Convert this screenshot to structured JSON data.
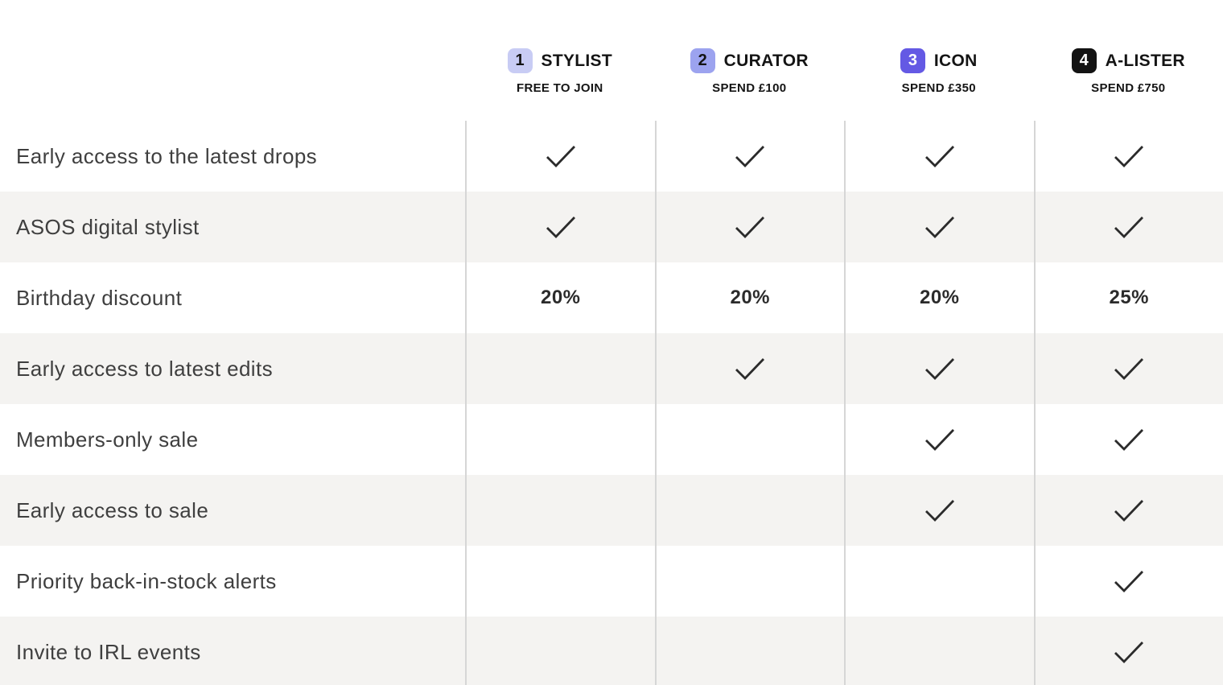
{
  "colors": {
    "stripe": "#f4f3f1",
    "separator": "#d6d6d6",
    "check": "#2b2b2b",
    "header_text": "#141414",
    "label_text": "#3f3f3f"
  },
  "tiers": [
    {
      "number": "1",
      "name": "STYLIST",
      "subtitle": "FREE TO JOIN",
      "badge_bg": "#c8ccf4",
      "badge_fg": "#141414"
    },
    {
      "number": "2",
      "name": "CURATOR",
      "subtitle": "SPEND £100",
      "badge_bg": "#9ca3ef",
      "badge_fg": "#141414"
    },
    {
      "number": "3",
      "name": "ICON",
      "subtitle": "SPEND £350",
      "badge_bg": "#6459e4",
      "badge_fg": "#ffffff"
    },
    {
      "number": "4",
      "name": "A-LISTER",
      "subtitle": "SPEND £750",
      "badge_bg": "#131313",
      "badge_fg": "#ffffff"
    }
  ],
  "benefits": [
    {
      "label": "Early access to the latest drops",
      "cells": [
        "check",
        "check",
        "check",
        "check"
      ]
    },
    {
      "label": "ASOS digital stylist",
      "cells": [
        "check",
        "check",
        "check",
        "check"
      ]
    },
    {
      "label": "Birthday discount",
      "cells": [
        "20%",
        "20%",
        "20%",
        "25%"
      ]
    },
    {
      "label": "Early access to latest edits",
      "cells": [
        "",
        "check",
        "check",
        "check"
      ]
    },
    {
      "label": "Members-only sale",
      "cells": [
        "",
        "",
        "check",
        "check"
      ]
    },
    {
      "label": "Early access to sale",
      "cells": [
        "",
        "",
        "check",
        "check"
      ]
    },
    {
      "label": "Priority back-in-stock alerts",
      "cells": [
        "",
        "",
        "",
        "check"
      ]
    },
    {
      "label": "Invite to IRL events",
      "cells": [
        "",
        "",
        "",
        "check"
      ]
    }
  ]
}
